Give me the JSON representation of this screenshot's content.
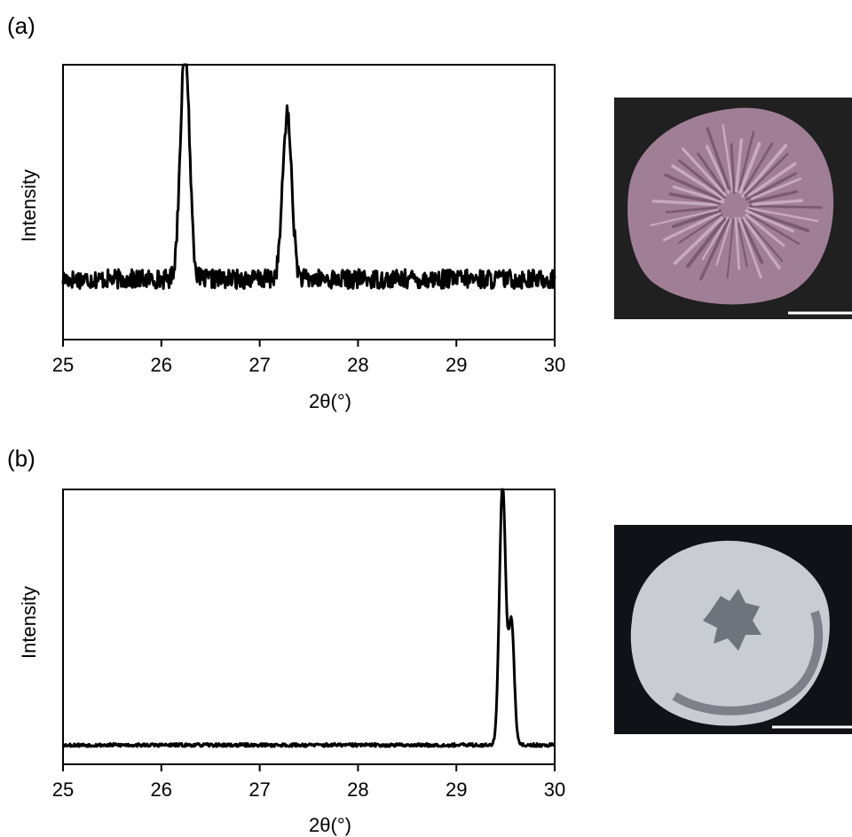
{
  "colors": {
    "line": "#000000",
    "background": "#ffffff",
    "photo_a_background": "#202020",
    "photo_a_specimen": "#a07f96",
    "photo_b_background": "#101218",
    "photo_b_specimen": "#c9ccd2",
    "scale_bar": "#ffffff"
  },
  "chart_data": [
    {
      "panel_label": "(a)",
      "type": "line",
      "xlabel": "2θ(°)",
      "ylabel": "Intensity",
      "xlim": [
        25,
        30
      ],
      "ylim": [
        0,
        1
      ],
      "x_ticks": [
        "25",
        "26",
        "27",
        "28",
        "29",
        "30"
      ],
      "y_ticks_shown": false,
      "grid": false,
      "legend": "none",
      "baseline_level": 0.22,
      "noise_amplitude": 0.035,
      "peaks": [
        {
          "x": 26.24,
          "height": 0.86,
          "width": 0.065
        },
        {
          "x": 27.28,
          "height": 0.6,
          "width": 0.065
        }
      ],
      "image_label": "",
      "image_icon": "photo-sample-a"
    },
    {
      "panel_label": "(b)",
      "type": "line",
      "xlabel": "2θ(°)",
      "ylabel": "Intensity",
      "xlim": [
        25,
        30
      ],
      "ylim": [
        0,
        1
      ],
      "x_ticks": [
        "25",
        "26",
        "27",
        "28",
        "29",
        "30"
      ],
      "y_ticks_shown": false,
      "grid": false,
      "legend": "none",
      "baseline_level": 0.07,
      "noise_amplitude": 0.006,
      "peaks": [
        {
          "x": 29.47,
          "height": 0.95,
          "width": 0.045
        },
        {
          "x": 29.56,
          "height": 0.45,
          "width": 0.04
        }
      ],
      "image_label": "",
      "image_icon": "photo-sample-b"
    }
  ]
}
